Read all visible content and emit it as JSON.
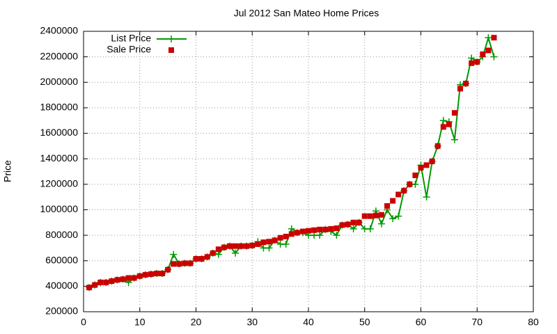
{
  "chart_data": {
    "type": "line",
    "title": "Jul 2012 San Mateo Home Prices",
    "y_label": "Price",
    "x": [
      1,
      2,
      3,
      4,
      5,
      6,
      7,
      8,
      9,
      10,
      11,
      12,
      13,
      14,
      15,
      16,
      17,
      18,
      19,
      20,
      21,
      22,
      23,
      24,
      25,
      26,
      27,
      28,
      29,
      30,
      31,
      32,
      33,
      34,
      35,
      36,
      37,
      38,
      39,
      40,
      41,
      42,
      43,
      44,
      45,
      46,
      47,
      48,
      49,
      50,
      51,
      52,
      53,
      54,
      55,
      56,
      57,
      58,
      59,
      60,
      61,
      62,
      63,
      64,
      65,
      66,
      67,
      68,
      69,
      70,
      71,
      72,
      73
    ],
    "series": [
      {
        "name": "List Price",
        "color": "#009900",
        "style": "linespoints",
        "values": [
          390000,
          410000,
          430000,
          430000,
          440000,
          450000,
          455000,
          430000,
          465000,
          480000,
          490000,
          495000,
          500000,
          500000,
          530000,
          650000,
          575000,
          580000,
          580000,
          615000,
          615000,
          630000,
          660000,
          650000,
          705000,
          715000,
          660000,
          715000,
          715000,
          720000,
          750000,
          700000,
          700000,
          760000,
          730000,
          730000,
          850000,
          820000,
          820000,
          800000,
          800000,
          800000,
          845000,
          830000,
          800000,
          880000,
          885000,
          850000,
          900000,
          850000,
          850000,
          990000,
          890000,
          1000000,
          930000,
          950000,
          1150000,
          1200000,
          1200000,
          1350000,
          1100000,
          1380000,
          1500000,
          1700000,
          1690000,
          1550000,
          1980000,
          1990000,
          2190000,
          2160000,
          2200000,
          2350000,
          2200000
        ]
      },
      {
        "name": "Sale Price",
        "color": "#cc0000",
        "style": "points",
        "values": [
          390000,
          410000,
          430000,
          430000,
          440000,
          450000,
          455000,
          465000,
          465000,
          480000,
          490000,
          495000,
          500000,
          500000,
          530000,
          575000,
          575000,
          580000,
          580000,
          615000,
          615000,
          630000,
          660000,
          690000,
          705000,
          715000,
          715000,
          715000,
          715000,
          720000,
          730000,
          745000,
          750000,
          760000,
          780000,
          790000,
          810000,
          820000,
          830000,
          835000,
          840000,
          845000,
          845000,
          850000,
          855000,
          880000,
          885000,
          900000,
          900000,
          950000,
          950000,
          955000,
          960000,
          1030000,
          1070000,
          1120000,
          1150000,
          1200000,
          1270000,
          1330000,
          1350000,
          1380000,
          1500000,
          1650000,
          1670000,
          1760000,
          1950000,
          1990000,
          2150000,
          2160000,
          2220000,
          2250000,
          2350000
        ]
      }
    ],
    "xlim": [
      0,
      80
    ],
    "xticks": [
      0,
      10,
      20,
      30,
      40,
      50,
      60,
      70,
      80
    ],
    "ylim": [
      200000,
      2400000
    ],
    "yticks": [
      200000,
      400000,
      600000,
      800000,
      1000000,
      1200000,
      1400000,
      1600000,
      1800000,
      2000000,
      2200000,
      2400000
    ],
    "grid": true,
    "legend": "top-left"
  }
}
